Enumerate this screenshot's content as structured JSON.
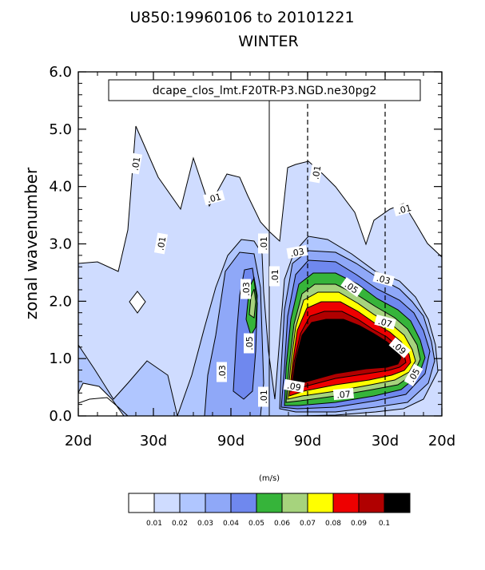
{
  "chart_data": {
    "type": "heatmap",
    "title": "U850:19960106 to 20101221",
    "subtitle": "WINTER",
    "case_label": "dcape_clos_lmt.F20TR-P3.NGD.ne30pg2",
    "ylabel": "zonal wavenumber",
    "units_label": "(m/s)",
    "ylim": [
      0,
      6
    ],
    "yticks": [
      "0.0",
      "1.0",
      "2.0",
      "3.0",
      "4.0",
      "5.0",
      "6.0"
    ],
    "xticks": [
      "20d",
      "30d",
      "90d",
      "90d",
      "30d",
      "20d"
    ],
    "levels": [
      0.01,
      0.02,
      0.03,
      0.04,
      0.05,
      0.06,
      0.07,
      0.08,
      0.09,
      0.1
    ],
    "colorbar_labels": [
      "0.01",
      "0.02",
      "0.03",
      "0.04",
      "0.05",
      "0.06",
      "0.07",
      "0.08",
      "0.09",
      "0.1"
    ],
    "fill_colors": [
      "#ffffff",
      "#cfdcff",
      "#b0c6ff",
      "#8fa8f8",
      "#6f88ee",
      "#36b43a",
      "#a6d37d",
      "#ffff00",
      "#ee0000",
      "#b00000",
      "#000000"
    ],
    "contour_labels": [
      ".01",
      ".01",
      ".01",
      ".01",
      ".01",
      ".01",
      ".01",
      ".01",
      ".03",
      ".03",
      ".03",
      ".03",
      ".05",
      ".05",
      ".05",
      ".07",
      ".07",
      ".09",
      ".09"
    ]
  }
}
